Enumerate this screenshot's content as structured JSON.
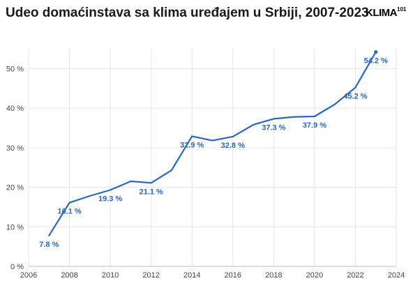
{
  "header": {
    "title": "Udeo domaćinstava sa klima uređajem u Srbiji, 2007-2023",
    "logo_main": "KLIMA",
    "logo_sup": "101"
  },
  "colors": {
    "line": "#2a66c0",
    "label": "#2a66c0",
    "grid": "#e6e6e6",
    "axis": "#bdbdbd"
  },
  "chart_data": {
    "type": "line",
    "title": "Udeo domaćinstava sa klima uređajem u Srbiji, 2007-2023",
    "xlabel": "",
    "ylabel": "",
    "xlim": [
      2006,
      2024
    ],
    "ylim": [
      0,
      55
    ],
    "grid": true,
    "x_ticks": [
      2006,
      2008,
      2010,
      2012,
      2014,
      2016,
      2018,
      2020,
      2022,
      2024
    ],
    "y_ticks": [
      0,
      10,
      20,
      30,
      40,
      50
    ],
    "y_tick_labels": [
      "0 %",
      "10 %",
      "20 %",
      "30 %",
      "40 %",
      "50 %"
    ],
    "series": [
      {
        "x": [
          2007,
          2008,
          2009,
          2010,
          2011,
          2012,
          2013,
          2014,
          2015,
          2016,
          2017,
          2018,
          2019,
          2020,
          2021,
          2022,
          2023
        ],
        "values": [
          7.8,
          16.1,
          17.8,
          19.3,
          21.5,
          21.1,
          24.3,
          32.9,
          31.8,
          32.8,
          35.8,
          37.3,
          37.8,
          37.9,
          41.0,
          45.2,
          54.2
        ]
      }
    ],
    "data_labels": [
      {
        "x": 2007,
        "y": 7.8,
        "text": "7.8 %"
      },
      {
        "x": 2008,
        "y": 16.1,
        "text": "16.1 %"
      },
      {
        "x": 2010,
        "y": 19.3,
        "text": "19.3 %"
      },
      {
        "x": 2012,
        "y": 21.1,
        "text": "21.1 %"
      },
      {
        "x": 2014,
        "y": 32.9,
        "text": "32.9 %"
      },
      {
        "x": 2016,
        "y": 32.8,
        "text": "32.8 %"
      },
      {
        "x": 2018,
        "y": 37.3,
        "text": "37.3 %"
      },
      {
        "x": 2020,
        "y": 37.9,
        "text": "37.9 %"
      },
      {
        "x": 2022,
        "y": 45.2,
        "text": "45.2 %"
      },
      {
        "x": 2023,
        "y": 54.2,
        "text": "54.2 %"
      }
    ]
  }
}
